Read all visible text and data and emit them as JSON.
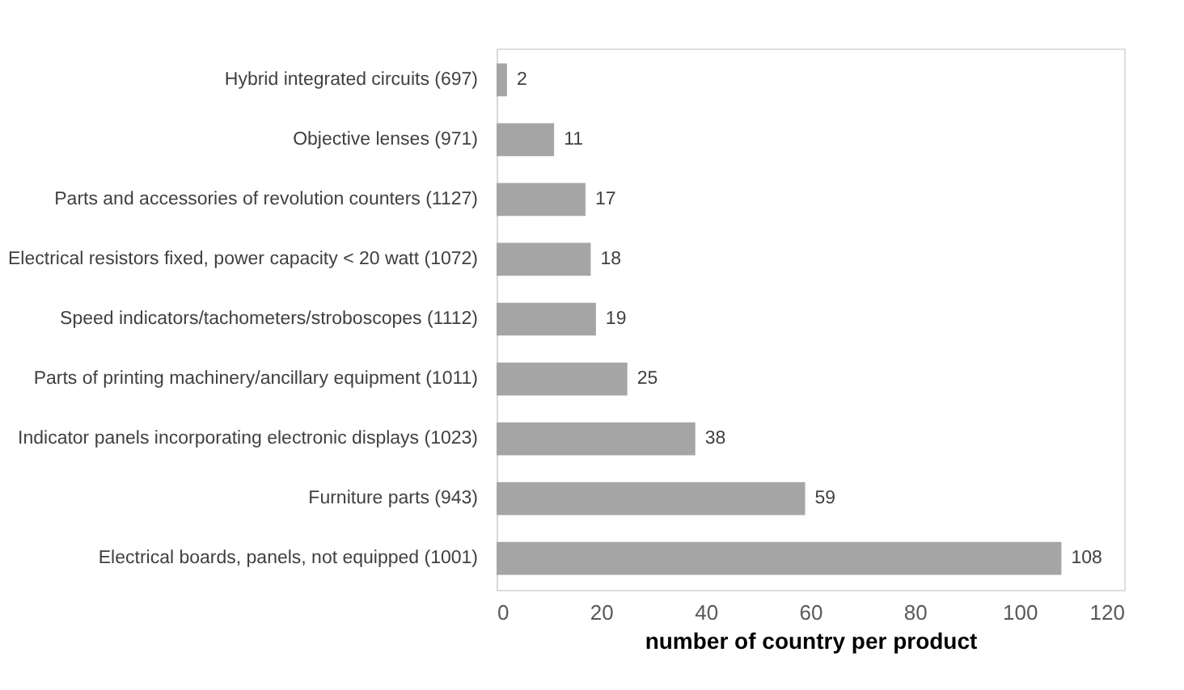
{
  "chart_data": {
    "type": "bar",
    "orientation": "horizontal",
    "xlabel": "number of country per product",
    "categories": [
      "Hybrid integrated circuits (697)",
      "Objective lenses (971)",
      "Parts and accessories of revolution counters (1127)",
      "Electrical resistors fixed, power capacity < 20 watt (1072)",
      "Speed indicators/tachometers/stroboscopes (1112)",
      "Parts of printing machinery/ancillary equipment (1011)",
      "Indicator panels incorporating electronic displays (1023)",
      "Furniture parts (943)",
      "Electrical boards, panels, not equipped (1001)"
    ],
    "values": [
      2,
      11,
      17,
      18,
      19,
      25,
      38,
      59,
      108
    ],
    "color": "#a5a5a5",
    "xlim": [
      0,
      120
    ],
    "xticks": [
      0,
      20,
      40,
      60,
      80,
      100,
      120
    ],
    "grid": false,
    "data_labels": true
  }
}
